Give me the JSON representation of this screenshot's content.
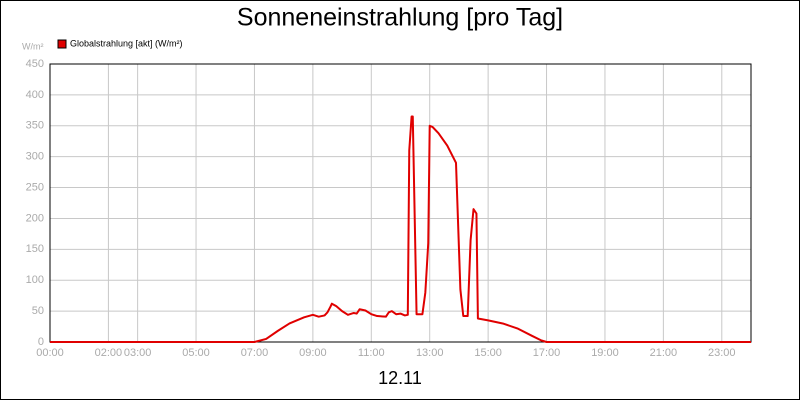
{
  "chart_data": {
    "type": "line",
    "title": "Sonneneinstrahlung [pro Tag]",
    "y_unit": "W/m²",
    "x_label": "12.11",
    "x": [
      0,
      7.0,
      7.4,
      7.8,
      8.2,
      8.7,
      9.0,
      9.2,
      9.4,
      9.5,
      9.6,
      9.65,
      9.8,
      10.0,
      10.2,
      10.4,
      10.5,
      10.6,
      10.8,
      11.0,
      11.2,
      11.5,
      11.6,
      11.7,
      11.85,
      12.0,
      12.15,
      12.25,
      12.3,
      12.38,
      12.42,
      12.55,
      12.75,
      12.85,
      12.95,
      13.0,
      13.1,
      13.3,
      13.6,
      13.9,
      14.05,
      14.15,
      14.3,
      14.4,
      14.5,
      14.6,
      14.65,
      15.0,
      15.5,
      16.0,
      16.5,
      16.8,
      17.0,
      24
    ],
    "series": [
      {
        "name": "Globalstrahlung [akt] (W/m²)",
        "color": "#e00000",
        "values": [
          0,
          0,
          5,
          18,
          30,
          40,
          44,
          41,
          43,
          48,
          57,
          62,
          58,
          50,
          44,
          47,
          46,
          53,
          51,
          45,
          42,
          41,
          48,
          50,
          45,
          46,
          43,
          44,
          310,
          365,
          365,
          45,
          45,
          80,
          160,
          350,
          348,
          338,
          318,
          290,
          85,
          42,
          42,
          165,
          215,
          208,
          38,
          35,
          30,
          22,
          10,
          3,
          0,
          0
        ]
      }
    ],
    "xlim": [
      0,
      24
    ],
    "xticks": [
      {
        "value": 0,
        "label": "00:00"
      },
      {
        "value": 2,
        "label": "02:00"
      },
      {
        "value": 3,
        "label": "03:00"
      },
      {
        "value": 5,
        "label": "05:00"
      },
      {
        "value": 7,
        "label": "07:00"
      },
      {
        "value": 9,
        "label": "09:00"
      },
      {
        "value": 11,
        "label": "11:00"
      },
      {
        "value": 13,
        "label": "13:00"
      },
      {
        "value": 15,
        "label": "15:00"
      },
      {
        "value": 17,
        "label": "17:00"
      },
      {
        "value": 19,
        "label": "19:00"
      },
      {
        "value": 21,
        "label": "21:00"
      },
      {
        "value": 23,
        "label": "23:00"
      }
    ],
    "ylim": [
      0,
      450
    ],
    "yticks": [
      0,
      50,
      100,
      150,
      200,
      250,
      300,
      350,
      400,
      450
    ],
    "grid": true
  }
}
